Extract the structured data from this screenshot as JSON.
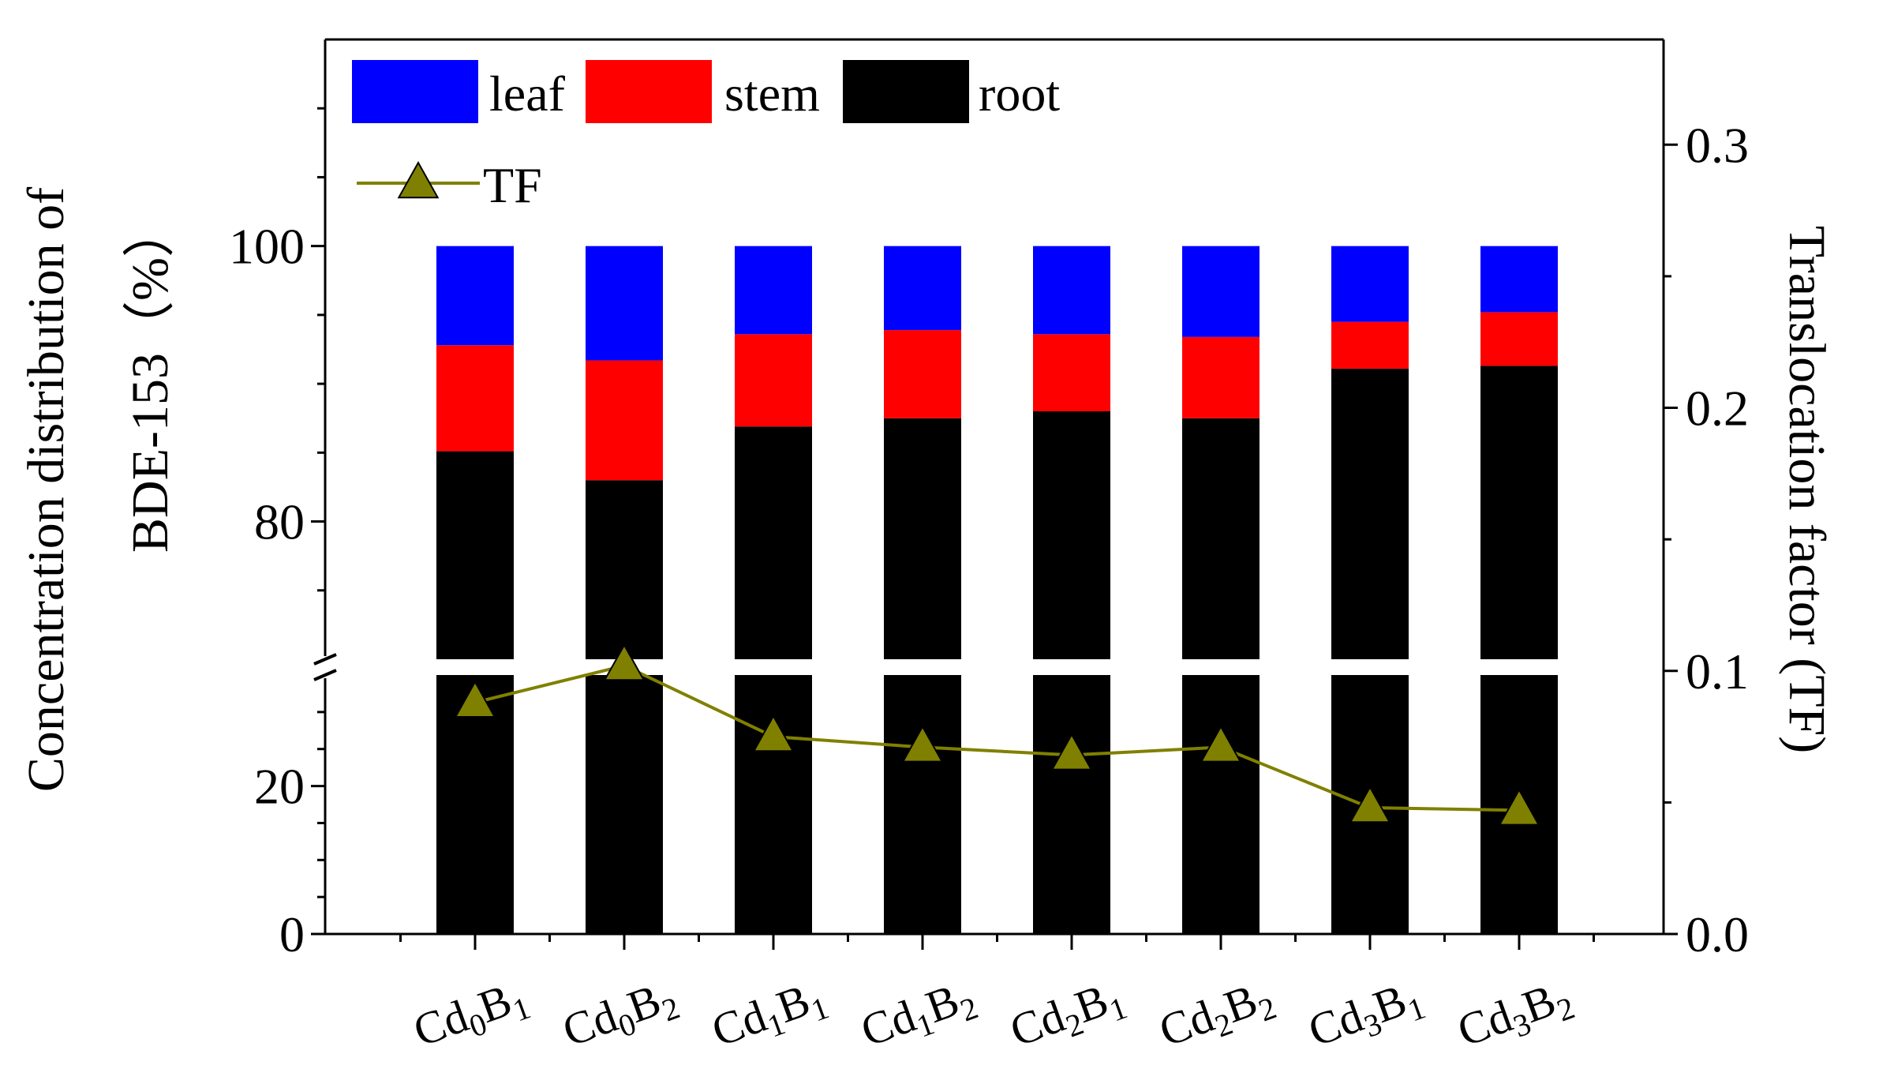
{
  "chart_data": {
    "type": "bar",
    "stacked": true,
    "broken_axis": true,
    "categories": [
      {
        "base": "Cd",
        "cd_sub": "0",
        "mid": "B",
        "b_sub": "1"
      },
      {
        "base": "Cd",
        "cd_sub": "0",
        "mid": "B",
        "b_sub": "2"
      },
      {
        "base": "Cd",
        "cd_sub": "1",
        "mid": "B",
        "b_sub": "1"
      },
      {
        "base": "Cd",
        "cd_sub": "1",
        "mid": "B",
        "b_sub": "2"
      },
      {
        "base": "Cd",
        "cd_sub": "2",
        "mid": "B",
        "b_sub": "1"
      },
      {
        "base": "Cd",
        "cd_sub": "2",
        "mid": "B",
        "b_sub": "2"
      },
      {
        "base": "Cd",
        "cd_sub": "3",
        "mid": "B",
        "b_sub": "1"
      },
      {
        "base": "Cd",
        "cd_sub": "3",
        "mid": "B",
        "b_sub": "2"
      }
    ],
    "series": [
      {
        "name": "root",
        "color": "#000000",
        "values": [
          85.1,
          83.0,
          86.9,
          87.5,
          88.0,
          87.5,
          91.1,
          91.3
        ]
      },
      {
        "name": "stem",
        "color": "#ff0000",
        "values": [
          7.7,
          8.7,
          6.7,
          6.4,
          5.6,
          5.9,
          3.4,
          3.9
        ]
      },
      {
        "name": "leaf",
        "color": "#0000ff",
        "values": [
          7.2,
          8.3,
          6.4,
          6.1,
          6.4,
          6.6,
          5.5,
          4.8
        ]
      }
    ],
    "tf": {
      "name": "TF",
      "color": "#808000",
      "values": [
        0.088,
        0.102,
        0.075,
        0.071,
        0.068,
        0.071,
        0.048,
        0.047
      ]
    },
    "ylabel_line1": "Concentration distribution of",
    "ylabel_line2": "BDE-153（%）",
    "y2label": "Translocation factor (TF)",
    "y_lower_range": [
      0,
      35
    ],
    "y_upper_range": [
      70,
      115
    ],
    "y_lower_ticks": [
      "0",
      "20"
    ],
    "y_upper_ticks": [
      "80",
      "100"
    ],
    "y2_range": [
      0,
      0.34
    ],
    "y2_ticks": [
      "0.0",
      "0.1",
      "0.2",
      "0.3"
    ],
    "legend_position": "top-left"
  }
}
